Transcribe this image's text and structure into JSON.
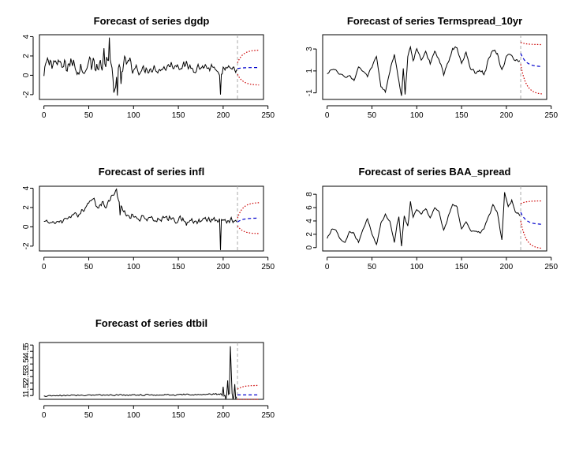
{
  "chart_data": [
    {
      "type": "line",
      "title": "Forecast of series dgdp",
      "xlabel": "",
      "ylabel": "",
      "xlim": [
        0,
        250
      ],
      "ylim": [
        -2.5,
        4.2
      ],
      "xticks": [
        0,
        50,
        100,
        150,
        200,
        250
      ],
      "yticks": [
        -2,
        0,
        2,
        4
      ],
      "n_obs": 215,
      "series_profile": [
        [
          0,
          -0.2
        ],
        [
          3,
          1.2
        ],
        [
          10,
          1.5
        ],
        [
          20,
          0.8
        ],
        [
          30,
          1.3
        ],
        [
          40,
          0.6
        ],
        [
          50,
          1.4
        ],
        [
          60,
          0.9
        ],
        [
          70,
          1.1
        ],
        [
          75,
          0.8
        ],
        [
          80,
          -0.8
        ],
        [
          90,
          1.3
        ],
        [
          100,
          0.9
        ],
        [
          110,
          0.5
        ],
        [
          120,
          0.8
        ],
        [
          130,
          0.6
        ],
        [
          140,
          1.0
        ],
        [
          150,
          1.1
        ],
        [
          160,
          0.9
        ],
        [
          170,
          0.8
        ],
        [
          180,
          0.9
        ],
        [
          190,
          0.6
        ],
        [
          196,
          -0.5
        ],
        [
          200,
          0.7
        ],
        [
          208,
          0.5
        ],
        [
          215,
          0.7
        ]
      ],
      "volatility": [
        [
          0,
          1.0
        ],
        [
          60,
          1.2
        ],
        [
          80,
          1.3
        ],
        [
          110,
          0.6
        ],
        [
          190,
          0.6
        ],
        [
          215,
          0.5
        ]
      ],
      "spikes": [
        [
          67,
          2.8
        ],
        [
          73,
          3.9
        ],
        [
          78,
          -1.8
        ],
        [
          82,
          -2.1
        ],
        [
          86,
          -0.9
        ],
        [
          197,
          -2.0
        ]
      ],
      "forecast_start": 216,
      "forecast_end": 240,
      "forecast": {
        "mean_start": 0.7,
        "mean_end": 0.8,
        "upper_start": 1.3,
        "upper_end": 2.6,
        "lower_start": 0.1,
        "lower_end": -1.0
      }
    },
    {
      "type": "line",
      "title": "Forecast of series Termspread_10yr",
      "xlabel": "",
      "ylabel": "",
      "xlim": [
        0,
        250
      ],
      "ylim": [
        -1.6,
        4.3
      ],
      "xticks": [
        0,
        50,
        100,
        150,
        200,
        250
      ],
      "yticks": [
        -1,
        1,
        3
      ],
      "n_obs": 215,
      "series_profile": [
        [
          0,
          0.7
        ],
        [
          5,
          1.1
        ],
        [
          10,
          1.0
        ],
        [
          20,
          0.4
        ],
        [
          25,
          0.6
        ],
        [
          30,
          0.1
        ],
        [
          35,
          1.4
        ],
        [
          40,
          1.0
        ],
        [
          45,
          0.5
        ],
        [
          50,
          1.3
        ],
        [
          55,
          2.3
        ],
        [
          60,
          -0.5
        ],
        [
          65,
          -0.9
        ],
        [
          70,
          1.0
        ],
        [
          75,
          2.5
        ],
        [
          80,
          0.0
        ],
        [
          83,
          -1.2
        ],
        [
          85,
          1.3
        ],
        [
          87,
          -1.3
        ],
        [
          90,
          2.3
        ],
        [
          93,
          3.2
        ],
        [
          96,
          2.0
        ],
        [
          100,
          3.0
        ],
        [
          105,
          2.1
        ],
        [
          110,
          2.8
        ],
        [
          115,
          1.6
        ],
        [
          120,
          2.8
        ],
        [
          125,
          2.0
        ],
        [
          130,
          0.6
        ],
        [
          135,
          1.8
        ],
        [
          140,
          3.0
        ],
        [
          145,
          3.2
        ],
        [
          150,
          1.6
        ],
        [
          155,
          2.7
        ],
        [
          160,
          1.3
        ],
        [
          165,
          0.8
        ],
        [
          170,
          1.1
        ],
        [
          175,
          0.7
        ],
        [
          180,
          2.0
        ],
        [
          185,
          3.0
        ],
        [
          190,
          2.6
        ],
        [
          195,
          1.0
        ],
        [
          200,
          2.3
        ],
        [
          205,
          2.5
        ],
        [
          210,
          2.0
        ],
        [
          215,
          1.9
        ]
      ],
      "volatility": [
        [
          0,
          0.15
        ],
        [
          215,
          0.2
        ]
      ],
      "spikes": [],
      "forecast_start": 216,
      "forecast_end": 240,
      "forecast": {
        "mean_start": 2.6,
        "mean_end": 1.4,
        "upper_start": 3.6,
        "upper_end": 3.4,
        "lower_start": 1.6,
        "lower_end": -1.1
      }
    },
    {
      "type": "line",
      "title": "Forecast of series infl",
      "xlabel": "",
      "ylabel": "",
      "xlim": [
        0,
        250
      ],
      "ylim": [
        -2.5,
        4.2
      ],
      "xticks": [
        0,
        50,
        100,
        150,
        200,
        250
      ],
      "yticks": [
        -2,
        0,
        2,
        4
      ],
      "n_obs": 215,
      "series_profile": [
        [
          0,
          0.5
        ],
        [
          10,
          0.4
        ],
        [
          20,
          0.6
        ],
        [
          30,
          1.0
        ],
        [
          40,
          1.4
        ],
        [
          48,
          2.2
        ],
        [
          55,
          3.0
        ],
        [
          60,
          2.0
        ],
        [
          65,
          2.6
        ],
        [
          70,
          2.2
        ],
        [
          75,
          3.0
        ],
        [
          80,
          3.6
        ],
        [
          85,
          2.0
        ],
        [
          90,
          1.5
        ],
        [
          95,
          1.0
        ],
        [
          100,
          1.2
        ],
        [
          110,
          0.9
        ],
        [
          120,
          1.0
        ],
        [
          130,
          0.8
        ],
        [
          140,
          0.7
        ],
        [
          150,
          0.8
        ],
        [
          160,
          0.6
        ],
        [
          170,
          0.6
        ],
        [
          180,
          0.7
        ],
        [
          190,
          0.8
        ],
        [
          195,
          0.5
        ],
        [
          200,
          0.8
        ],
        [
          210,
          0.7
        ],
        [
          215,
          0.5
        ]
      ],
      "volatility": [
        [
          0,
          0.25
        ],
        [
          80,
          0.4
        ],
        [
          100,
          0.5
        ],
        [
          190,
          0.5
        ],
        [
          215,
          0.4
        ]
      ],
      "spikes": [
        [
          81,
          3.9
        ],
        [
          85,
          1.2
        ],
        [
          197,
          -2.4
        ]
      ],
      "forecast_start": 216,
      "forecast_end": 240,
      "forecast": {
        "mean_start": 0.5,
        "mean_end": 0.9,
        "upper_start": 0.9,
        "upper_end": 2.5,
        "lower_start": 0.1,
        "lower_end": -0.7
      }
    },
    {
      "type": "line",
      "title": "Forecast of series BAA_spread",
      "xlabel": "",
      "ylabel": "",
      "xlim": [
        0,
        250
      ],
      "ylim": [
        -0.5,
        9.2
      ],
      "xticks": [
        0,
        50,
        100,
        150,
        200,
        250
      ],
      "yticks": [
        0,
        2,
        4,
        6,
        8
      ],
      "n_obs": 215,
      "series_profile": [
        [
          0,
          1.3
        ],
        [
          5,
          2.8
        ],
        [
          10,
          2.5
        ],
        [
          15,
          1.2
        ],
        [
          20,
          0.7
        ],
        [
          25,
          2.5
        ],
        [
          30,
          2.0
        ],
        [
          35,
          0.8
        ],
        [
          40,
          2.6
        ],
        [
          45,
          4.4
        ],
        [
          50,
          2.0
        ],
        [
          55,
          0.4
        ],
        [
          60,
          3.6
        ],
        [
          65,
          5.0
        ],
        [
          70,
          4.0
        ],
        [
          75,
          0.8
        ],
        [
          78,
          3.5
        ],
        [
          80,
          4.6
        ],
        [
          83,
          0.3
        ],
        [
          86,
          4.8
        ],
        [
          90,
          3.2
        ],
        [
          93,
          6.8
        ],
        [
          96,
          4.5
        ],
        [
          100,
          5.8
        ],
        [
          105,
          5.0
        ],
        [
          110,
          5.8
        ],
        [
          115,
          4.5
        ],
        [
          120,
          6.0
        ],
        [
          125,
          5.3
        ],
        [
          130,
          2.5
        ],
        [
          135,
          4.5
        ],
        [
          140,
          6.5
        ],
        [
          145,
          6.1
        ],
        [
          150,
          2.8
        ],
        [
          155,
          4.0
        ],
        [
          160,
          2.5
        ],
        [
          170,
          2.3
        ],
        [
          175,
          2.9
        ],
        [
          180,
          4.5
        ],
        [
          185,
          6.5
        ],
        [
          190,
          5.2
        ],
        [
          195,
          1.0
        ],
        [
          198,
          8.3
        ],
        [
          202,
          6.2
        ],
        [
          206,
          7.1
        ],
        [
          210,
          5.5
        ],
        [
          215,
          4.8
        ]
      ],
      "volatility": [
        [
          0,
          0.2
        ],
        [
          215,
          0.25
        ]
      ],
      "spikes": [],
      "forecast_start": 216,
      "forecast_end": 240,
      "forecast": {
        "mean_start": 5.3,
        "mean_end": 3.5,
        "upper_start": 6.6,
        "upper_end": 7.0,
        "lower_start": 4.0,
        "lower_end": -0.1
      }
    },
    {
      "type": "line",
      "title": "Forecast of series dtbil",
      "xlabel": "",
      "ylabel": "",
      "xlim": [
        0,
        250
      ],
      "ylim": [
        0.7,
        5.2
      ],
      "xticks": [
        0,
        50,
        100,
        150,
        200,
        250
      ],
      "yticks": [
        1,
        1.5,
        2,
        2.5,
        3,
        3.5,
        4,
        4.5,
        5
      ],
      "n_obs": 215,
      "series_profile": [
        [
          0,
          0.95
        ],
        [
          50,
          1.05
        ],
        [
          100,
          1.05
        ],
        [
          150,
          1.05
        ],
        [
          195,
          1.1
        ],
        [
          215,
          1.0
        ]
      ],
      "volatility": [
        [
          0,
          0.06
        ],
        [
          190,
          0.08
        ],
        [
          200,
          0.2
        ],
        [
          215,
          0.3
        ]
      ],
      "spikes": [
        [
          200,
          1.7
        ],
        [
          203,
          0.6
        ],
        [
          205,
          2.2
        ],
        [
          208,
          4.9
        ],
        [
          209,
          3.0
        ],
        [
          211,
          0.7
        ],
        [
          213,
          1.9
        ]
      ],
      "forecast_start": 216,
      "forecast_end": 240,
      "forecast": {
        "mean_start": 1.05,
        "mean_end": 1.05,
        "upper_start": 1.5,
        "upper_end": 1.8,
        "lower_start": 0.6,
        "lower_end": 0.35
      }
    }
  ]
}
